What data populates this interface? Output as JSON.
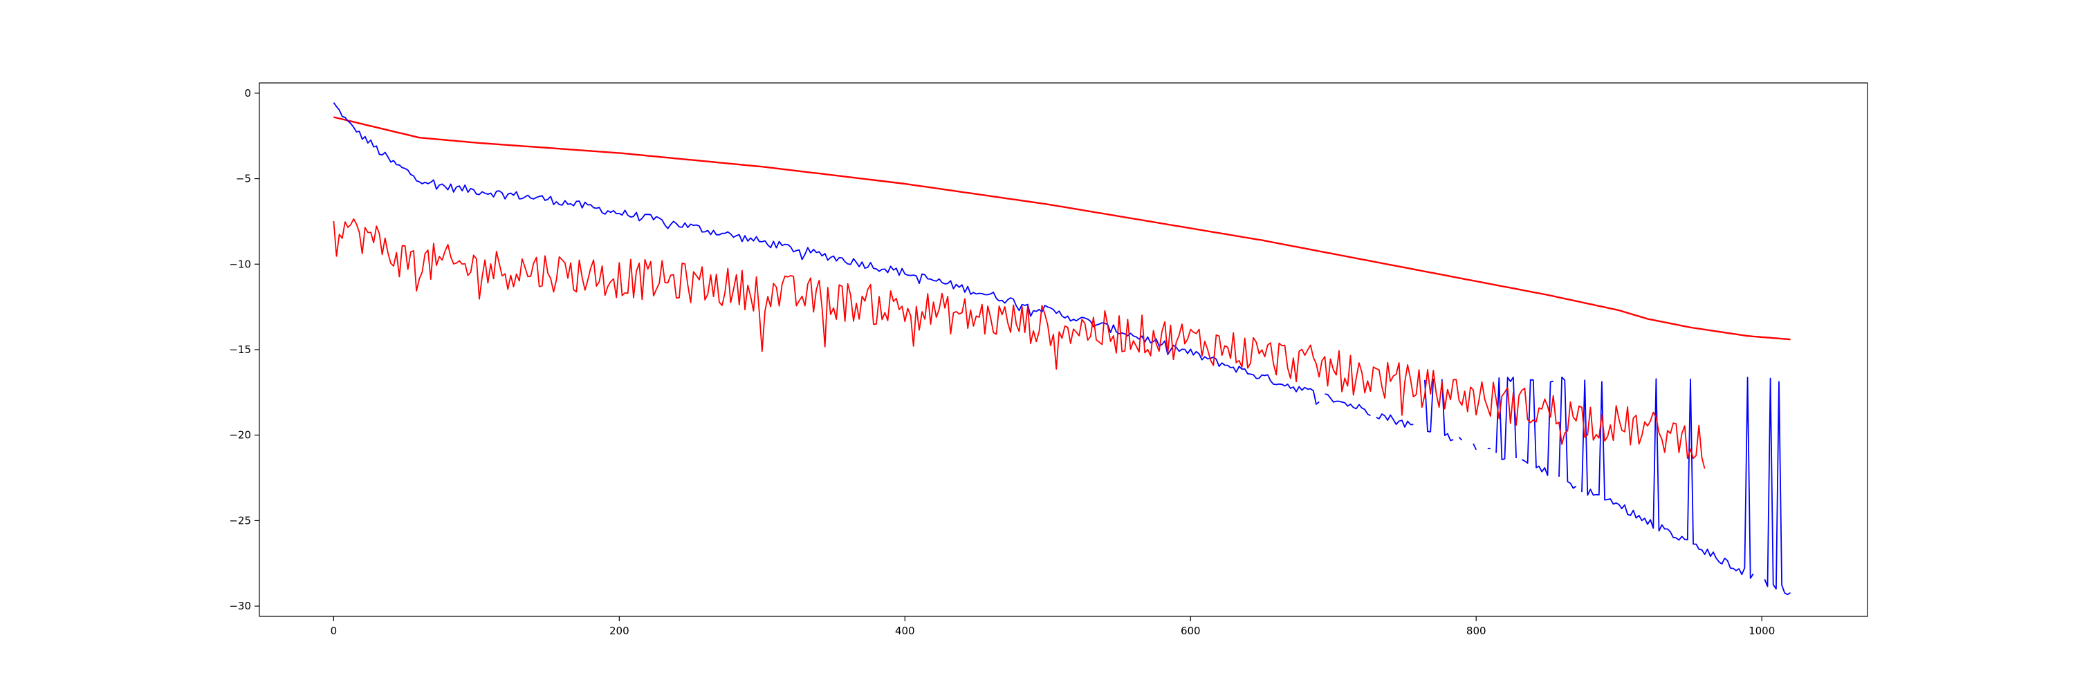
{
  "chart_data": {
    "type": "line",
    "title": "",
    "xlabel": "",
    "ylabel": "",
    "xlim": [
      -52,
      1074
    ],
    "ylim": [
      -30.6,
      0.6
    ],
    "grid": false,
    "x_ticks": [
      0,
      200,
      400,
      600,
      800,
      1000
    ],
    "y_ticks": [
      0,
      -5,
      -10,
      -15,
      -20,
      -25,
      -30
    ],
    "x_tick_labels": [
      "0",
      "200",
      "400",
      "600",
      "800",
      "1000"
    ],
    "y_tick_labels": [
      "0",
      "−5",
      "−10",
      "−15",
      "−20",
      "−25",
      "−30"
    ],
    "series": [
      {
        "color": "#ff0000",
        "style": "smooth",
        "x": [
          0,
          20,
          60,
          100,
          150,
          200,
          250,
          300,
          350,
          400,
          450,
          500,
          550,
          600,
          650,
          700,
          750,
          800,
          850,
          900,
          920,
          950,
          990,
          1020
        ],
        "y": [
          -1.4,
          -1.8,
          -2.6,
          -2.9,
          -3.2,
          -3.5,
          -3.9,
          -4.3,
          -4.8,
          -5.3,
          -5.9,
          -6.5,
          -7.2,
          -7.9,
          -8.6,
          -9.4,
          -10.2,
          -11.0,
          -11.8,
          -12.7,
          -13.2,
          -13.7,
          -14.2,
          -14.4
        ]
      },
      {
        "color": "#0000ff",
        "style": "noisy",
        "x": [
          0,
          10,
          20,
          40,
          60,
          80,
          100,
          150,
          200,
          250,
          300,
          350,
          400,
          450,
          500,
          550,
          600,
          650,
          700,
          750,
          800,
          850,
          900,
          950,
          1000,
          1020
        ],
        "y": [
          -0.6,
          -1.7,
          -2.5,
          -4.0,
          -5.0,
          -5.5,
          -5.7,
          -6.2,
          -7.0,
          -7.8,
          -8.7,
          -9.6,
          -10.5,
          -11.6,
          -12.7,
          -13.9,
          -15.2,
          -16.6,
          -17.9,
          -19.3,
          -20.7,
          -22.2,
          -24.1,
          -26.4,
          -28.5,
          -29.1
        ],
        "noise": 0.25,
        "spikes_to": -16.6,
        "spike_range": [
          760,
          1020
        ],
        "gaps_from": 690
      },
      {
        "color": "#ff0000",
        "style": "noisy",
        "x": [
          0,
          10,
          50,
          100,
          150,
          200,
          250,
          300,
          350,
          400,
          450,
          500,
          550,
          600,
          650,
          700,
          750,
          800,
          850,
          900,
          950,
          960
        ],
        "y": [
          -8.0,
          -7.7,
          -9.8,
          -10.2,
          -10.4,
          -10.8,
          -11.1,
          -11.6,
          -12.1,
          -12.6,
          -13.1,
          -13.6,
          -14.0,
          -14.5,
          -15.3,
          -16.2,
          -17.0,
          -17.8,
          -18.6,
          -19.4,
          -20.2,
          -20.5
        ],
        "noise": 1.2,
        "end": 960
      }
    ]
  }
}
